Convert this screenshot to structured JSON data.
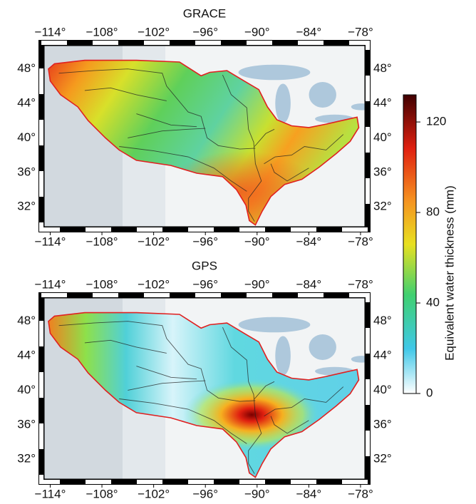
{
  "panels": [
    {
      "title": "GRACE",
      "xlim": [
        -114.7,
        -77.5
      ],
      "ylim": [
        29.7,
        50.7
      ],
      "lon_ticks": [
        {
          "value": -114,
          "label": "−114°"
        },
        {
          "value": -108,
          "label": "−108°"
        },
        {
          "value": -102,
          "label": "−102°"
        },
        {
          "value": -96,
          "label": "−96°"
        },
        {
          "value": -90,
          "label": "−90°"
        },
        {
          "value": -84,
          "label": "−84°"
        },
        {
          "value": -78,
          "label": "−78°"
        }
      ],
      "lat_ticks": [
        {
          "value": 32,
          "label": "32°"
        },
        {
          "value": 36,
          "label": "36°"
        },
        {
          "value": 40,
          "label": "40°"
        },
        {
          "value": 44,
          "label": "44°"
        },
        {
          "value": 48,
          "label": "48°"
        }
      ]
    },
    {
      "title": "GPS",
      "xlim": [
        -114.7,
        -77.5
      ],
      "ylim": [
        29.7,
        50.7
      ],
      "lon_ticks": [
        {
          "value": -114,
          "label": "−114°"
        },
        {
          "value": -108,
          "label": "−108°"
        },
        {
          "value": -102,
          "label": "−102°"
        },
        {
          "value": -96,
          "label": "−96°"
        },
        {
          "value": -90,
          "label": "−90°"
        },
        {
          "value": -84,
          "label": "−84°"
        },
        {
          "value": -78,
          "label": "−78°"
        }
      ],
      "lat_ticks": [
        {
          "value": 32,
          "label": "32°"
        },
        {
          "value": 36,
          "label": "36°"
        },
        {
          "value": 40,
          "label": "40°"
        },
        {
          "value": 44,
          "label": "44°"
        },
        {
          "value": 48,
          "label": "48°"
        }
      ]
    }
  ],
  "colorbar": {
    "label": "Equivalent water thickness (mm)",
    "lim": [
      0,
      132
    ],
    "ticks": [
      0,
      40,
      80,
      120
    ]
  }
}
